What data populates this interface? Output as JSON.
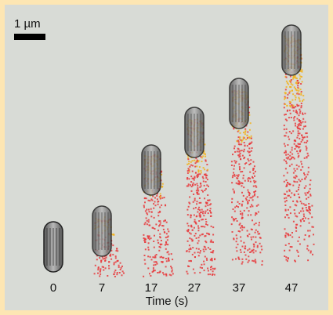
{
  "scale_bar": {
    "label": "1 µm"
  },
  "time_labels": [
    "0",
    "7",
    "17",
    "27",
    "37",
    "47"
  ],
  "axis_label": "Time (s)"
}
